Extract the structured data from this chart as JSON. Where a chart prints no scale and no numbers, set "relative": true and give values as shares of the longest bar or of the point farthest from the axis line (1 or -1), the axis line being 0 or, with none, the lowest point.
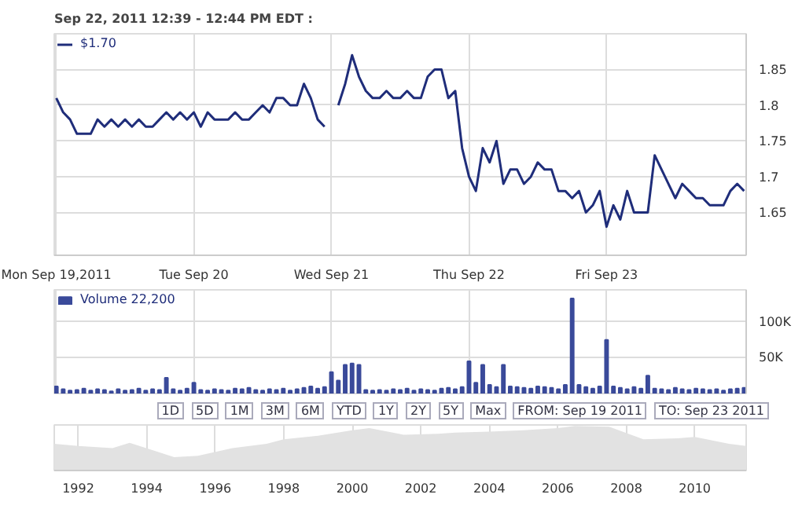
{
  "chart_data": [
    {
      "type": "line",
      "title": "Sep 22, 2011 12:39 - 12:44 PM EDT :",
      "ylim": [
        1.59,
        1.9
      ],
      "categories": [
        "Mon Sep 19,2011",
        null,
        null,
        null,
        null,
        null,
        null,
        null,
        null,
        null,
        null,
        null,
        null,
        null,
        null,
        null,
        null,
        null,
        null,
        null,
        "Tue Sep 20",
        null,
        null,
        null,
        null,
        null,
        null,
        null,
        null,
        null,
        null,
        null,
        null,
        null,
        null,
        null,
        null,
        null,
        null,
        null,
        "Wed Sep 21",
        null,
        null,
        null,
        null,
        null,
        null,
        null,
        null,
        null,
        null,
        null,
        null,
        null,
        null,
        null,
        null,
        null,
        null,
        null,
        "Thu Sep 22",
        null,
        null,
        null,
        null,
        null,
        null,
        null,
        null,
        null,
        null,
        null,
        null,
        null,
        null,
        null,
        null,
        null,
        null,
        null,
        "Fri Sep 23",
        null,
        null,
        null,
        null,
        null,
        null,
        null,
        null,
        null,
        null,
        null,
        null,
        null,
        null,
        null,
        null,
        null,
        null,
        null,
        null
      ],
      "yticks": [
        1.65,
        1.7,
        1.75,
        1.8,
        1.85
      ],
      "grid": true,
      "legend": "top left",
      "marker": "none",
      "line_style": "solid",
      "series": [
        {
          "name": "$1.70",
          "color": "#1f2d7a",
          "values": [
            1.81,
            1.79,
            1.78,
            1.76,
            1.76,
            1.76,
            1.78,
            1.77,
            1.78,
            1.77,
            1.78,
            1.77,
            1.78,
            1.77,
            1.77,
            1.78,
            1.79,
            1.78,
            1.79,
            1.78,
            1.79,
            1.77,
            1.79,
            1.78,
            1.78,
            1.78,
            1.79,
            1.78,
            1.78,
            1.79,
            1.8,
            1.79,
            1.81,
            1.81,
            1.8,
            1.8,
            1.83,
            1.81,
            1.78,
            1.77,
            null,
            1.8,
            1.83,
            1.87,
            1.84,
            1.82,
            1.81,
            1.81,
            1.82,
            1.81,
            1.81,
            1.82,
            1.81,
            1.81,
            1.84,
            1.85,
            1.85,
            1.81,
            1.82,
            1.74,
            1.7,
            1.68,
            1.74,
            1.72,
            1.75,
            1.69,
            1.71,
            1.71,
            1.69,
            1.7,
            1.72,
            1.71,
            1.71,
            1.68,
            1.68,
            1.67,
            1.68,
            1.65,
            1.66,
            1.68,
            1.63,
            1.66,
            1.64,
            1.68,
            1.65,
            1.65,
            1.65,
            1.73,
            1.71,
            1.69,
            1.67,
            1.69,
            1.68,
            1.67,
            1.67,
            1.66,
            1.66,
            1.66,
            1.68,
            1.69,
            1.68
          ]
        }
      ]
    },
    {
      "type": "bar",
      "ylim": [
        0,
        145000
      ],
      "categories": [
        null,
        null,
        null,
        null,
        null,
        null,
        null,
        null,
        null,
        null,
        null,
        null,
        null,
        null,
        null,
        null,
        null,
        null,
        null,
        null,
        null,
        null,
        null,
        null,
        null,
        null,
        null,
        null,
        null,
        null,
        null,
        null,
        null,
        null,
        null,
        null,
        null,
        null,
        null,
        null,
        null,
        null,
        null,
        null,
        null,
        null,
        null,
        null,
        null,
        null,
        null,
        null,
        null,
        null,
        null,
        null,
        null,
        null,
        null,
        null,
        null,
        null,
        null,
        null,
        null,
        null,
        null,
        null,
        null,
        null,
        null,
        null,
        null,
        null,
        null,
        null,
        null,
        null,
        null,
        null,
        null,
        null,
        null,
        null,
        null,
        null,
        null,
        null,
        null,
        null,
        null,
        null,
        null,
        null,
        null,
        null,
        null,
        null,
        null,
        null,
        null
      ],
      "yticks": [
        {
          "value": 50000,
          "label": "50K"
        },
        {
          "value": 100000,
          "label": "100K"
        }
      ],
      "tick_labels": "y",
      "grid": true,
      "legend": "top left",
      "annotations": [
        "1D",
        "5D",
        "1M",
        "3M",
        "6M",
        "YTD",
        "1Y",
        "2Y",
        "5Y",
        "Max",
        "FROM: Sep 19 2011",
        "TO: Sep 23 2011"
      ],
      "series": [
        {
          "name": "Volume 22,200",
          "color": "#3a4a9a",
          "values": [
            10000,
            6000,
            4000,
            5000,
            7000,
            4000,
            6000,
            5000,
            3000,
            6000,
            4000,
            5000,
            7000,
            4000,
            6000,
            5000,
            22000,
            6000,
            4000,
            7000,
            15000,
            5000,
            4000,
            6000,
            5000,
            4000,
            7000,
            6000,
            8000,
            5000,
            4000,
            6000,
            5000,
            7000,
            4000,
            6000,
            8000,
            10000,
            7000,
            9000,
            30000,
            18000,
            40000,
            42000,
            40000,
            5000,
            4000,
            5000,
            4000,
            6000,
            5000,
            7000,
            4000,
            6000,
            5000,
            4000,
            7000,
            8000,
            6000,
            9000,
            45000,
            15000,
            40000,
            12000,
            9000,
            40000,
            10000,
            9000,
            8000,
            7000,
            10000,
            9000,
            8000,
            6000,
            12000,
            133000,
            12000,
            9000,
            7000,
            10000,
            75000,
            10000,
            8000,
            6000,
            9000,
            7000,
            25000,
            7000,
            6000,
            5000,
            8000,
            6000,
            5000,
            7000,
            6000,
            5000,
            6000,
            4000,
            6000,
            7000,
            8000
          ]
        }
      ]
    },
    {
      "type": "area",
      "relative": true,
      "xlim": [
        1991.3,
        2011.5
      ],
      "xticks": [
        1992,
        1994,
        1996,
        1998,
        2000,
        2002,
        2004,
        2006,
        2008,
        2010
      ],
      "grid": "x",
      "series": [
        {
          "color": "#e2e2e2",
          "x": [
            1991.3,
            1992,
            1993,
            1993.5,
            1994.2,
            1994.8,
            1995.5,
            1996.5,
            1997.5,
            1998,
            1999,
            2000,
            2000.5,
            2001.5,
            2002.5,
            2003,
            2004,
            2005,
            2006,
            2006.5,
            2007.5,
            2008.5,
            2009.5,
            2010,
            2011,
            2011.5
          ],
          "values": [
            0.6,
            0.55,
            0.5,
            0.62,
            0.45,
            0.3,
            0.33,
            0.5,
            0.6,
            0.7,
            0.78,
            0.9,
            0.95,
            0.8,
            0.82,
            0.85,
            0.87,
            0.9,
            0.95,
            1.0,
            0.98,
            0.7,
            0.72,
            0.75,
            0.6,
            0.55
          ]
        }
      ]
    }
  ]
}
